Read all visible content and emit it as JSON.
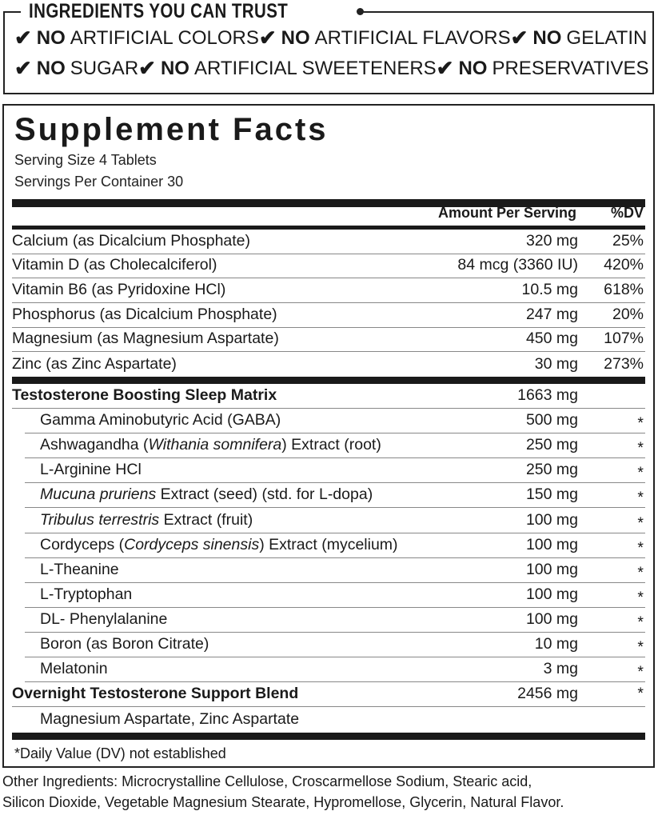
{
  "trust": {
    "title": "INGREDIENTS YOU CAN TRUST",
    "check_icon": "checkmark-icon",
    "row1": [
      {
        "no": "NO",
        "text": "ARTIFICIAL COLORS"
      },
      {
        "no": "NO",
        "text": "ARTIFICIAL FLAVORS"
      },
      {
        "no": "NO",
        "text": "GELATIN"
      }
    ],
    "row2": [
      {
        "no": "NO",
        "text": "SUGAR"
      },
      {
        "no": "NO",
        "text": "ARTIFICIAL SWEETENERS"
      },
      {
        "no": "NO",
        "text": "PRESERVATIVES"
      }
    ]
  },
  "facts": {
    "title": "Supplement Facts",
    "serving_size": "Serving Size 4 Tablets",
    "servings_per_container": "Servings Per Container 30",
    "col_amount": "Amount Per Serving",
    "col_dv": "%DV",
    "nutrients": [
      {
        "name": "Calcium (as Dicalcium Phosphate)",
        "amount": "320 mg",
        "dv": "25%"
      },
      {
        "name": "Vitamin D (as Cholecalciferol)",
        "amount": "84 mcg (3360 IU)",
        "dv": "420%"
      },
      {
        "name": "Vitamin B6 (as Pyridoxine HCl)",
        "amount": "10.5 mg",
        "dv": "618%"
      },
      {
        "name": "Phosphorus (as Dicalcium Phosphate)",
        "amount": "247 mg",
        "dv": "20%"
      },
      {
        "name": "Magnesium (as Magnesium Aspartate)",
        "amount": "450 mg",
        "dv": "107%"
      },
      {
        "name": "Zinc (as Zinc Aspartate)",
        "amount": "30 mg",
        "dv": "273%"
      }
    ],
    "blend_rows": [
      {
        "type": "bold",
        "pre": "Testosterone Boosting Sleep Matrix",
        "amount": "1663 mg",
        "dv": ""
      },
      {
        "type": "sub",
        "pre": "Gamma Aminobutyric Acid (GABA)",
        "amount": "500 mg",
        "dv": "*"
      },
      {
        "type": "sub",
        "pre": "Ashwagandha (",
        "ital": "Withania somnifera",
        "post": ") Extract (root)",
        "amount": "250 mg",
        "dv": "*"
      },
      {
        "type": "sub",
        "pre": "L-Arginine HCl",
        "amount": "250 mg",
        "dv": "*"
      },
      {
        "type": "sub",
        "ital": "Mucuna pruriens",
        "post": " Extract (seed) (std. for L-dopa)",
        "amount": "150 mg",
        "dv": "*"
      },
      {
        "type": "sub",
        "ital": "Tribulus terrestris",
        "post": " Extract (fruit)",
        "amount": "100 mg",
        "dv": "*"
      },
      {
        "type": "sub",
        "pre": "Cordyceps (",
        "ital": "Cordyceps sinensis",
        "post": ") Extract (mycelium)",
        "amount": "100 mg",
        "dv": "*"
      },
      {
        "type": "sub",
        "pre": "L-Theanine",
        "amount": "100 mg",
        "dv": "*"
      },
      {
        "type": "sub",
        "pre": "L-Tryptophan",
        "amount": "100 mg",
        "dv": "*"
      },
      {
        "type": "sub",
        "pre": "DL- Phenylalanine",
        "amount": "100 mg",
        "dv": "*"
      },
      {
        "type": "sub",
        "pre": "Boron (as Boron Citrate)",
        "amount": "10 mg",
        "dv": "*"
      },
      {
        "type": "sub",
        "pre": "Melatonin",
        "amount": "3 mg",
        "dv": "*"
      },
      {
        "type": "bold",
        "pre": "Overnight Testosterone Support Blend",
        "amount": "2456 mg",
        "dv": "*"
      },
      {
        "type": "subnb",
        "pre": "Magnesium Aspartate, Zinc Aspartate",
        "amount": "",
        "dv": ""
      }
    ],
    "footnote": "*Daily Value (DV) not established"
  },
  "other_ingredients": {
    "line1": "Other Ingredients: Microcrystalline Cellulose, Croscarmellose Sodium, Stearic acid,",
    "line2": "Silicon Dioxide, Vegetable Magnesium Stearate, Hypromellose, Glycerin, Natural Flavor."
  }
}
